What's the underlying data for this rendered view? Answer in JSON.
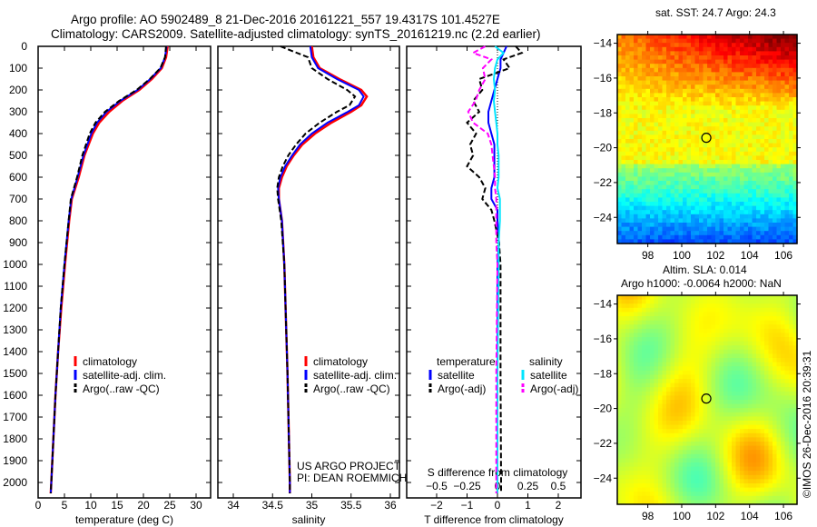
{
  "title_line1": "Argo profile: AO 5902489_8 21-Dec-2016 20161221_557 19.4317S 101.4527E",
  "title_line2": "Climatology: CARS2009. Satellite-adjusted climatology: synTS_20161219.nc (2.2d earlier)",
  "credit": "©IMOS 26-Dec-2016 20:39:31",
  "project_line1": "US ARGO PROJECT",
  "project_line2": "PI: DEAN ROEMMICH",
  "colors": {
    "climatology": "#ff0000",
    "satellite": "#0000ff",
    "argo": "#000000",
    "sal_satellite": "#00e5ff",
    "sal_argo": "#ff00ff"
  },
  "chart_data": [
    {
      "type": "line",
      "name": "temperature",
      "xlabel": "temperature (deg C)",
      "xlim": [
        -1,
        31.5
      ],
      "xticks": [
        "0",
        "5",
        "10",
        "15",
        "20",
        "25",
        "30"
      ],
      "ylim": [
        0,
        2070
      ],
      "yticks": [
        "0",
        "100",
        "200",
        "300",
        "400",
        "500",
        "600",
        "700",
        "800",
        "900",
        "1000",
        "1100",
        "1200",
        "1300",
        "1400",
        "1500",
        "1600",
        "1700",
        "1800",
        "1900",
        "2000"
      ],
      "legend": [
        "climatology",
        "satellite-adj. clim.",
        "Argo(..raw -QC)"
      ],
      "depth": [
        0,
        50,
        100,
        150,
        200,
        250,
        300,
        350,
        400,
        500,
        600,
        700,
        800,
        900,
        1000,
        1200,
        1400,
        1600,
        1800,
        2000,
        2050
      ],
      "series": [
        {
          "name": "climatology",
          "values": [
            24.6,
            24.3,
            23.5,
            21.6,
            19.2,
            16,
            13.5,
            11.6,
            10.4,
            8.8,
            7.7,
            6.4,
            5.9,
            5.5,
            5.1,
            4.4,
            3.8,
            3.3,
            2.9,
            2.5,
            2.4
          ]
        },
        {
          "name": "satellite-adj. clim.",
          "values": [
            24.4,
            24.1,
            23.3,
            21.3,
            18.9,
            15.6,
            13,
            11.2,
            10.1,
            8.6,
            7.5,
            6.3,
            5.8,
            5.4,
            5,
            4.3,
            3.8,
            3.3,
            2.9,
            2.5,
            2.4
          ]
        },
        {
          "name": "Argo(..raw -QC)",
          "values": [
            24.3,
            24.1,
            23.2,
            21.2,
            18.7,
            15.4,
            12.7,
            10.9,
            9.8,
            8.4,
            7.4,
            6.2,
            5.8,
            5.4,
            5,
            4.3,
            3.8,
            3.3,
            2.9,
            2.5,
            2.4
          ]
        }
      ]
    },
    {
      "type": "line",
      "name": "salinity",
      "xlabel": "salinity",
      "xlim": [
        33.8,
        36.2
      ],
      "xticks": [
        "34",
        "34.5",
        "35",
        "35.5",
        "36"
      ],
      "legend": [
        "climatology",
        "satellite-adj. clim.",
        "Argo(..raw -QC)"
      ],
      "depth": [
        0,
        50,
        100,
        150,
        200,
        230,
        270,
        300,
        350,
        400,
        450,
        500,
        550,
        600,
        650,
        700,
        800,
        1000,
        1500,
        2000,
        2050
      ],
      "series": [
        {
          "name": "climatology",
          "values": [
            35.0,
            35.02,
            35.1,
            35.35,
            35.63,
            35.7,
            35.63,
            35.5,
            35.25,
            35.04,
            34.88,
            34.77,
            34.68,
            34.62,
            34.58,
            34.58,
            34.62,
            34.65,
            34.69,
            34.72,
            34.72
          ]
        },
        {
          "name": "satellite-adj. clim.",
          "values": [
            34.98,
            35.0,
            35.08,
            35.32,
            35.6,
            35.66,
            35.6,
            35.46,
            35.2,
            35.0,
            34.85,
            34.75,
            34.66,
            34.6,
            34.57,
            34.58,
            34.62,
            34.65,
            34.69,
            34.72,
            34.72
          ]
        },
        {
          "name": "Argo(..raw -QC)",
          "values": [
            34.6,
            34.95,
            35.0,
            35.2,
            35.45,
            35.55,
            35.48,
            35.32,
            35.1,
            34.92,
            34.8,
            34.7,
            34.63,
            34.58,
            34.56,
            34.57,
            34.61,
            34.65,
            34.69,
            34.72,
            34.72
          ]
        }
      ]
    },
    {
      "type": "line",
      "name": "difference from climatology",
      "xlabel": "T difference from climatology",
      "xlim": [
        -3,
        3
      ],
      "xticks": [
        "-2",
        "-1",
        "0",
        "1",
        "2"
      ],
      "x2label": "S difference from climatology",
      "x2ticks": [
        "-0.5",
        "-0.25",
        "0",
        "0.25",
        "0.5"
      ],
      "legend": {
        "temperature": [
          "satellite",
          "Argo(-adj)"
        ],
        "salinity": [
          "satellite",
          "Argo(-adj)"
        ]
      },
      "legend_headers": [
        "temperature",
        "salinity"
      ],
      "depth": [
        0,
        30,
        60,
        100,
        150,
        200,
        250,
        300,
        350,
        400,
        450,
        500,
        550,
        600,
        650,
        700,
        750,
        800,
        900,
        1000,
        1500,
        2000,
        2050
      ],
      "series": [
        {
          "name": "T satellite",
          "values": [
            0.3,
            0.2,
            0.1,
            0.1,
            0.0,
            -0.1,
            -0.2,
            -0.3,
            -0.3,
            -0.2,
            -0.1,
            -0.1,
            -0.1,
            -0.1,
            -0.2,
            -0.2,
            0.0,
            0.0,
            0.05,
            0.0,
            0.0,
            0.0,
            0.0
          ]
        },
        {
          "name": "T Argo(-adj)",
          "values": [
            0.6,
            0.8,
            0.2,
            0.4,
            -0.6,
            -0.5,
            -0.8,
            -0.6,
            -1.0,
            -0.7,
            -0.9,
            -0.8,
            -1.0,
            -0.6,
            -0.4,
            -0.5,
            -0.2,
            -0.1,
            0.05,
            0.1,
            0.1,
            0.12,
            0.12
          ]
        },
        {
          "name": "S satellite",
          "values": [
            -0.02,
            0.05,
            0.0,
            -0.02,
            -0.03,
            -0.02,
            -0.03,
            -0.02,
            -0.01,
            0.0,
            0.0,
            0.01,
            0.01,
            0.01,
            0.0,
            0.02,
            0.02,
            0.02,
            0.01,
            0.01,
            0.0,
            0.0,
            0.0
          ]
        },
        {
          "name": "S Argo(-adj)",
          "values": [
            -0.1,
            -0.2,
            -0.05,
            -0.12,
            -0.1,
            -0.15,
            -0.18,
            -0.24,
            -0.2,
            -0.08,
            -0.05,
            -0.04,
            -0.03,
            -0.02,
            -0.02,
            -0.01,
            -0.01,
            -0.01,
            -0.01,
            0.0,
            -0.01,
            -0.01,
            -0.01
          ]
        }
      ]
    },
    {
      "type": "heatmap",
      "name": "sst-map",
      "title": "sat. SST: 24.7 Argo: 24.3",
      "xlim": [
        96.2,
        106.8
      ],
      "ylim": [
        -25.5,
        -13.5
      ],
      "xticks": [
        "98",
        "100",
        "102",
        "104",
        "106"
      ],
      "yticks": [
        "-14",
        "-16",
        "-18",
        "-20",
        "-22",
        "-24"
      ],
      "argo_position": [
        101.45,
        -19.43
      ]
    },
    {
      "type": "heatmap",
      "name": "sla-map",
      "title_line1": "Altim. SLA: 0.014",
      "title_line2": "Argo h1000: -0.0064 h2000: NaN",
      "xlim": [
        96.2,
        106.8
      ],
      "ylim": [
        -25.5,
        -13.5
      ],
      "xticks": [
        "98",
        "100",
        "102",
        "104",
        "106"
      ],
      "yticks": [
        "-14",
        "-16",
        "-18",
        "-20",
        "-22",
        "-24"
      ],
      "argo_position": [
        101.45,
        -19.43
      ]
    }
  ]
}
